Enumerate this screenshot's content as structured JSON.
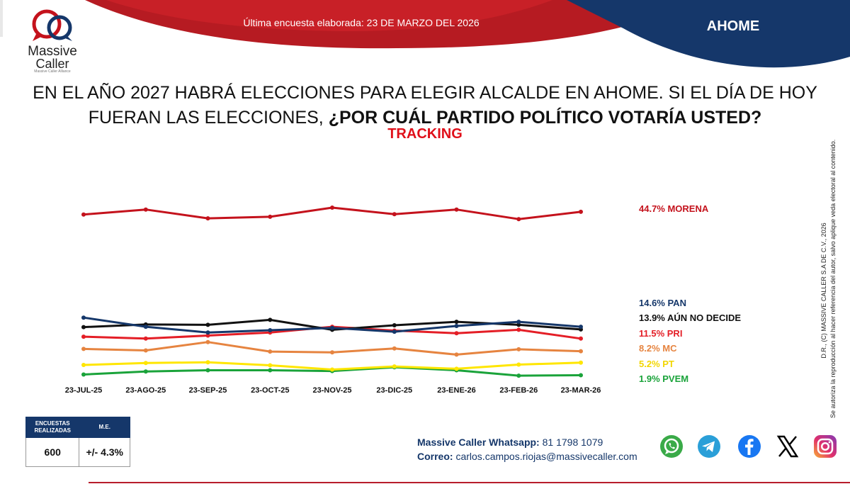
{
  "header": {
    "survey_date": "Última encuesta elaborada: 23 DE MARZO DEL 2026",
    "region": "AHOME"
  },
  "brand": {
    "name_line1": "Massive",
    "name_line2": "Caller",
    "tagline": "Massive Caller Alliance",
    "logo_icon": "speech-bubbles-logo"
  },
  "question": {
    "part1": "EN EL AÑO 2027 HABRÁ ELECCIONES PARA ELEGIR ALCALDE EN AHOME. SI EL DÍA DE HOY FUERAN LAS ELECCIONES,",
    "part2": "¿POR CUÁL PARTIDO POLÍTICO VOTARÍA USTED?",
    "subtitle": "TRACKING"
  },
  "chart_data": {
    "type": "line",
    "title": "TRACKING",
    "xlabel": "",
    "ylabel": "",
    "ylim": [
      0,
      50
    ],
    "grid": false,
    "legend": "right",
    "categories": [
      "23-JUL-25",
      "23-AGO-25",
      "23-SEP-25",
      "23-OCT-25",
      "23-NOV-25",
      "23-DIC-25",
      "23-ENE-26",
      "23-FEB-26",
      "23-MAR-26"
    ],
    "series": [
      {
        "name": "MORENA",
        "label": "44.7% MORENA",
        "color": "#c4121c",
        "values": [
          44.0,
          45.3,
          43.0,
          43.4,
          45.8,
          44.1,
          45.3,
          42.8,
          44.7
        ]
      },
      {
        "name": "PAN",
        "label": "14.6% PAN",
        "color": "#15376a",
        "values": [
          17.0,
          14.6,
          13.1,
          13.7,
          14.3,
          13.3,
          14.8,
          15.9,
          14.6
        ]
      },
      {
        "name": "AÚN NO DECIDE",
        "label": "13.9% AÚN NO DECIDE",
        "color": "#111111",
        "values": [
          14.5,
          15.2,
          15.1,
          16.4,
          13.8,
          15.0,
          15.9,
          15.1,
          13.9
        ]
      },
      {
        "name": "PRI",
        "label": "11.5% PRI",
        "color": "#e41e26",
        "values": [
          12.0,
          11.5,
          12.3,
          13.1,
          14.6,
          13.6,
          12.9,
          13.8,
          11.5
        ]
      },
      {
        "name": "MC",
        "label": "8.2% MC",
        "color": "#e68440",
        "values": [
          8.8,
          8.4,
          10.6,
          8.1,
          7.9,
          8.9,
          7.3,
          8.7,
          8.2
        ]
      },
      {
        "name": "PT",
        "label": "5.2% PT",
        "color": "#ffe600",
        "values": [
          4.6,
          5.1,
          5.3,
          4.5,
          3.4,
          4.2,
          3.6,
          4.7,
          5.2
        ]
      },
      {
        "name": "PVEM",
        "label": "1.9% PVEM",
        "color": "#1aa33a",
        "values": [
          2.1,
          2.9,
          3.2,
          3.2,
          3.0,
          4.0,
          3.2,
          1.8,
          1.9
        ]
      }
    ]
  },
  "note": {
    "line1": "D.R., (C) MASSIVE CALLER S.A DE C.V., 2026",
    "line2": "Se autoriza la reproducción al hacer referencia del autor, salvo aplique veda electoral al contenido."
  },
  "survey_info": {
    "col1_header_line1": "ENCUESTAS",
    "col1_header_line2": "REALIZADAS",
    "col2_header": "M.E.",
    "surveys": "600",
    "margin_error": "+/- 4.3%"
  },
  "contact": {
    "whatsapp_label": "Massive Caller Whatsapp:",
    "whatsapp_number": "81 1798 1079",
    "email_label": "Correo:",
    "email": "carlos.campos.riojas@massivecaller.com"
  },
  "social": [
    {
      "name": "whatsapp-icon",
      "color": "#3aaa48"
    },
    {
      "name": "telegram-icon",
      "color": "#2a9fd8"
    },
    {
      "name": "facebook-icon",
      "color": "#1877f2"
    },
    {
      "name": "x-icon",
      "color": "#000000"
    },
    {
      "name": "instagram-icon",
      "color": "#d6246e"
    }
  ]
}
